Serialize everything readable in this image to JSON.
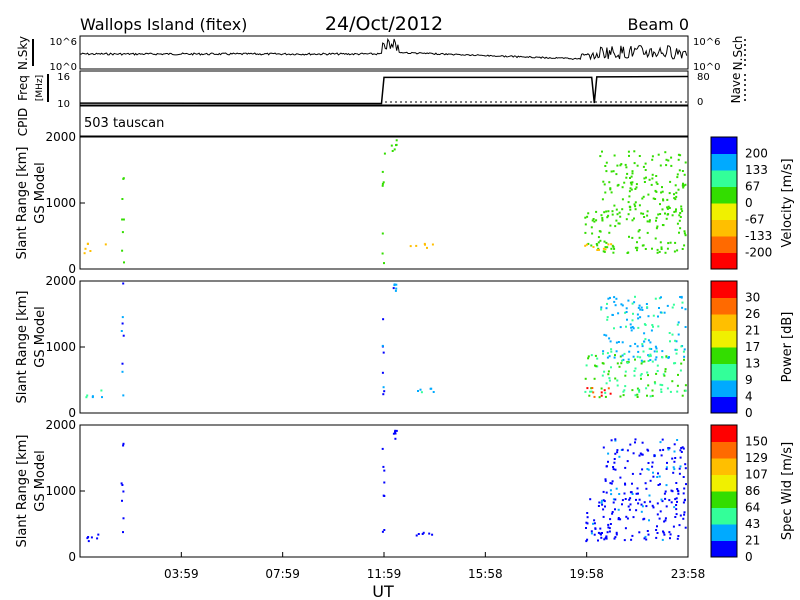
{
  "header": {
    "station": "Wallops Island  (fitex)",
    "date": "24/Oct/2012",
    "beam": "Beam 0"
  },
  "chart_data": {
    "type": "range-time plot",
    "xlabel": "UT",
    "x_ticks": [
      "03:59",
      "07:59",
      "11:59",
      "15:58",
      "19:58",
      "23:58"
    ],
    "x_range_hours": [
      0,
      24
    ],
    "strips": {
      "sky": {
        "labels": [
          "N.Sky"
        ],
        "right_labels": [
          "N.Sch"
        ],
        "left_ticks": [
          "10^6",
          "10^0"
        ],
        "right_ticks": [
          "10^6",
          "10^0"
        ]
      },
      "freq": {
        "labels": [
          "Freq",
          "[MHz]"
        ],
        "right_labels": [
          "Nave"
        ],
        "left_ticks": [
          "16",
          "10"
        ],
        "right_ticks": [
          "80",
          "0"
        ],
        "freq_trace": [
          {
            "t": 0,
            "v": 10.2
          },
          {
            "t": 11.9,
            "v": 10.1
          },
          {
            "t": 12.0,
            "v": 15.7
          },
          {
            "t": 20.2,
            "v": 15.7
          },
          {
            "t": 20.3,
            "v": 10.2
          },
          {
            "t": 20.4,
            "v": 15.8
          },
          {
            "t": 24,
            "v": 15.9
          }
        ],
        "nave_level": 0
      },
      "cpid": {
        "label": "CPID",
        "text": "503 tauscan"
      }
    },
    "panels": [
      {
        "param": "velocity",
        "ylabel": "Slant Range [km]",
        "sublabel": "GS Model",
        "y_ticks": [
          "2000",
          "1000",
          "0"
        ],
        "ylim": [
          0,
          2000
        ],
        "colorbar_label": "Velocity [m/s]",
        "colorbar_ticks": [
          "200",
          "133",
          "67",
          "0",
          "-67",
          "-133",
          "-200"
        ],
        "colors": [
          "#ff0000",
          "#ff6a00",
          "#ffbf00",
          "#f0f000",
          "#33dd00",
          "#33ff99",
          "#00aaff",
          "#0000ff"
        ]
      },
      {
        "param": "power",
        "ylabel": "Slant Range [km]",
        "sublabel": "GS Model",
        "y_ticks": [
          "2000",
          "1000",
          "0"
        ],
        "ylim": [
          0,
          2000
        ],
        "colorbar_label": "Power [dB]",
        "colorbar_ticks": [
          "30",
          "26",
          "21",
          "17",
          "13",
          "9",
          "4",
          "0"
        ],
        "colors": [
          "#0000ff",
          "#00aaff",
          "#33ff99",
          "#33dd00",
          "#f0f000",
          "#ffbf00",
          "#ff6a00",
          "#ff0000"
        ]
      },
      {
        "param": "spectral_width",
        "ylabel": "Slant Range [km]",
        "sublabel": "GS Model",
        "y_ticks": [
          "2000",
          "1000",
          "0"
        ],
        "ylim": [
          0,
          2000
        ],
        "colorbar_label": "Spec Wid [m/s]",
        "colorbar_ticks": [
          "150",
          "129",
          "107",
          "86",
          "64",
          "43",
          "21",
          "0"
        ],
        "colors": [
          "#0000ff",
          "#00aaff",
          "#33ff99",
          "#33dd00",
          "#f0f000",
          "#ffbf00",
          "#ff6a00",
          "#ff0000"
        ]
      }
    ],
    "echo_regions": [
      {
        "t0": 0.0,
        "t1": 1.0,
        "r0": 250,
        "r1": 400,
        "vel": -60,
        "pow": 8,
        "wid": 5
      },
      {
        "t0": 1.6,
        "t1": 1.7,
        "r0": 100,
        "r1": 2000,
        "vel": 30,
        "pow": 5,
        "wid": 5
      },
      {
        "t0": 11.9,
        "t1": 12.0,
        "r0": 50,
        "r1": 2000,
        "vel": 20,
        "pow": 5,
        "wid": 5
      },
      {
        "t0": 12.2,
        "t1": 12.5,
        "r0": 1800,
        "r1": 2000,
        "vel": 20,
        "pow": 5,
        "wid": 5
      },
      {
        "t0": 13.0,
        "t1": 14.0,
        "r0": 330,
        "r1": 400,
        "vel": -70,
        "pow": 8,
        "wid": 5
      },
      {
        "t0": 19.9,
        "t1": 23.9,
        "r0": 250,
        "r1": 900,
        "vel": 15,
        "pow": 12,
        "wid": 8
      },
      {
        "t0": 19.9,
        "t1": 21.0,
        "r0": 250,
        "r1": 450,
        "vel": -80,
        "pow": 28,
        "wid": 8
      },
      {
        "t0": 20.5,
        "t1": 23.9,
        "r0": 800,
        "r1": 1800,
        "vel": 15,
        "pow": 7,
        "wid": 12
      }
    ]
  }
}
